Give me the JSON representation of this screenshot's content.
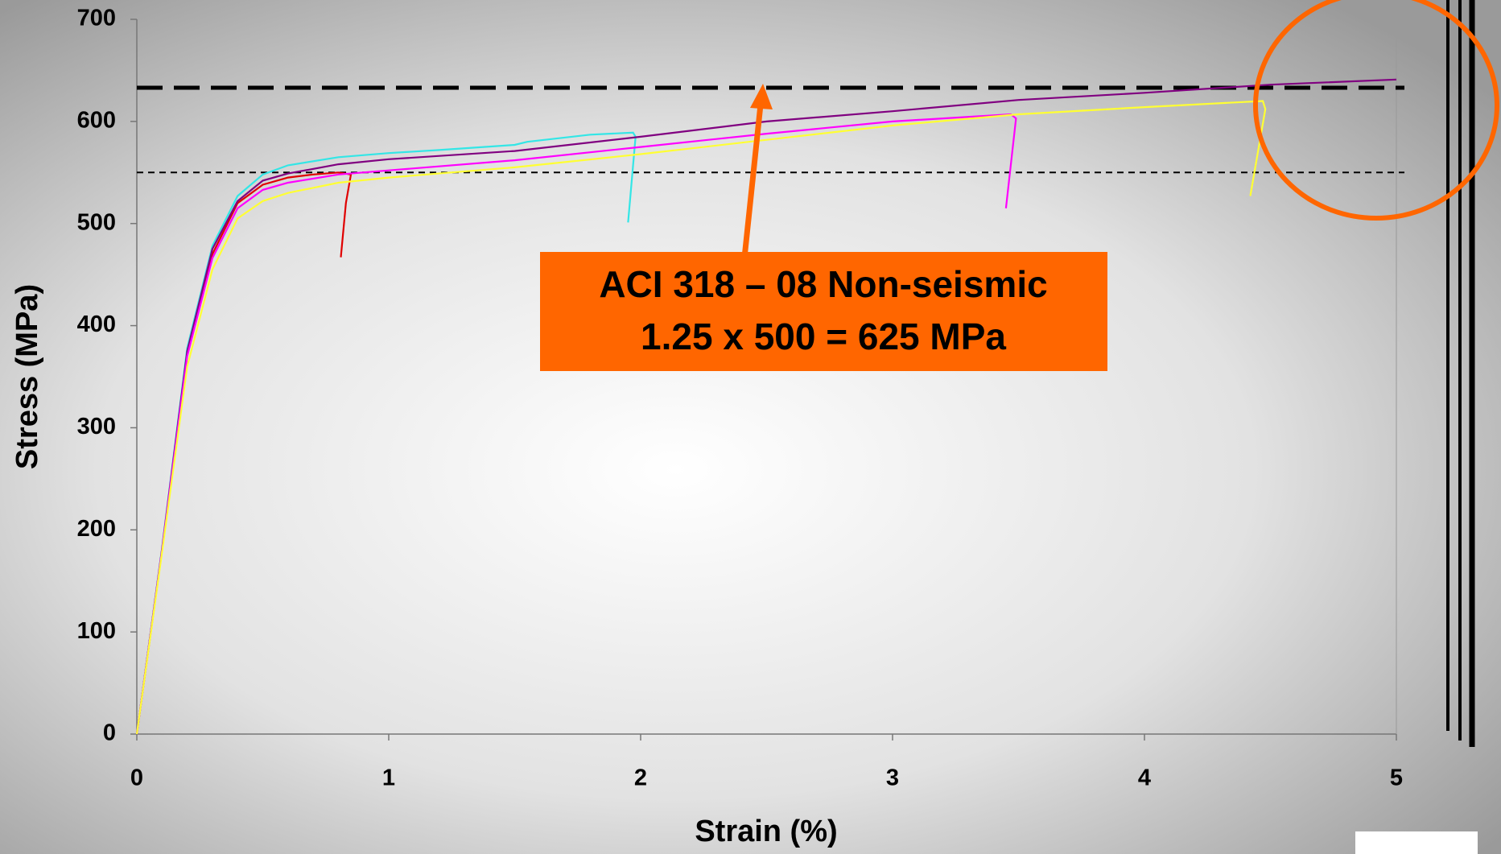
{
  "chart_data": {
    "type": "line",
    "xlabel": "Strain (%)",
    "ylabel": "Stress (MPa)",
    "xlim": [
      0,
      5
    ],
    "ylim": [
      0,
      700
    ],
    "xticks": [
      0,
      1,
      2,
      3,
      4,
      5
    ],
    "yticks": [
      0,
      100,
      200,
      300,
      400,
      500,
      600,
      700
    ],
    "series": [
      {
        "color": "#e00000",
        "x": [
          0,
          0.1,
          0.2,
          0.3,
          0.4,
          0.5,
          0.6,
          0.7,
          0.8,
          0.85,
          0.83,
          0.81
        ],
        "values": [
          0,
          180,
          372,
          470,
          520,
          538,
          545,
          548,
          550,
          548,
          520,
          467
        ]
      },
      {
        "color": "#33e6e6",
        "x": [
          0,
          0.1,
          0.2,
          0.3,
          0.4,
          0.5,
          0.6,
          0.8,
          1,
          1.2,
          1.5,
          1.55,
          1.8,
          1.97,
          1.98,
          1.95
        ],
        "values": [
          0,
          182,
          378,
          478,
          527,
          548,
          557,
          565,
          569,
          572,
          577,
          580,
          587,
          589,
          585,
          501
        ]
      },
      {
        "color": "#800080",
        "x": [
          0,
          0.1,
          0.2,
          0.3,
          0.4,
          0.5,
          0.6,
          0.8,
          1,
          1.5,
          2,
          2.5,
          3,
          3.5,
          4,
          4.5,
          5
        ],
        "values": [
          0,
          181,
          375,
          475,
          522,
          542,
          549,
          558,
          563,
          571,
          585,
          600,
          610,
          621,
          628,
          636,
          641
        ]
      },
      {
        "color": "#ff00ff",
        "x": [
          0,
          0.1,
          0.2,
          0.3,
          0.4,
          0.5,
          0.6,
          0.8,
          1,
          1.5,
          2,
          2.5,
          3,
          3.47,
          3.49,
          3.45
        ],
        "values": [
          0,
          180,
          370,
          466,
          515,
          533,
          540,
          548,
          552,
          562,
          575,
          588,
          600,
          607,
          603,
          515
        ]
      },
      {
        "color": "#ffff33",
        "x": [
          0,
          0.1,
          0.2,
          0.3,
          0.4,
          0.5,
          0.6,
          0.8,
          1,
          1.5,
          2,
          2.5,
          3,
          3.5,
          4,
          4.47,
          4.48,
          4.42
        ],
        "values": [
          0,
          178,
          360,
          455,
          505,
          522,
          530,
          540,
          545,
          555,
          568,
          582,
          596,
          607,
          614,
          620,
          612,
          527
        ]
      }
    ],
    "reference_lines": [
      {
        "value": 633,
        "color": "#000000",
        "dash": "long"
      },
      {
        "value": 550,
        "color": "#000000",
        "dash": "short"
      }
    ],
    "annotation": [
      "ACI 318 – 08  Non-seismic",
      "1.25 x 500 = 625 MPa"
    ],
    "annotation_color": "#ff6600"
  }
}
